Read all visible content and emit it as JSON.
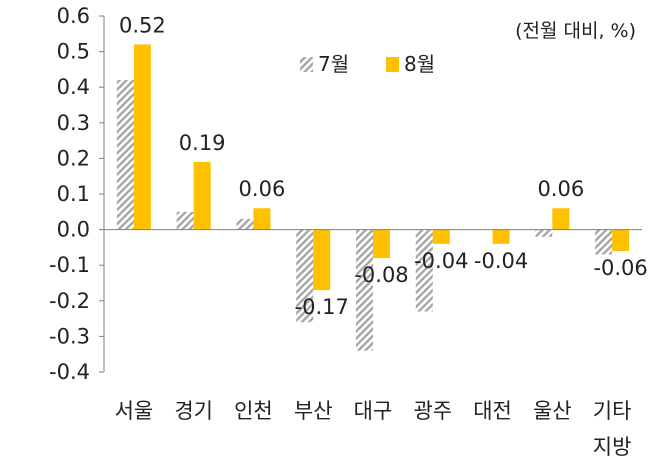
{
  "unit_note": "(전월 대비, %)",
  "colors": {
    "aug": "#FFC000",
    "jul_stripe": "#A6A6A6",
    "axis": "#808080"
  },
  "chart_data": {
    "type": "bar",
    "categories": [
      "서울",
      "경기",
      "인천",
      "부산",
      "대구",
      "광주",
      "대전",
      "울산",
      "기타"
    ],
    "category_extra": {
      "8": "지방"
    },
    "series": [
      {
        "name": "7월",
        "pattern": "diagonal-hatch",
        "values": [
          0.42,
          0.05,
          0.03,
          -0.26,
          -0.34,
          -0.23,
          0.0,
          -0.02,
          -0.07
        ]
      },
      {
        "name": "8월",
        "values": [
          0.52,
          0.19,
          0.06,
          -0.17,
          -0.08,
          -0.04,
          -0.04,
          0.06,
          -0.06
        ]
      }
    ],
    "data_labels": [
      "0.52",
      "0.19",
      "0.06",
      "-0.17",
      "-0.08",
      "-0.04",
      "-0.04",
      "0.06",
      "-0.06"
    ],
    "yticks": [
      "0.6",
      "0.5",
      "0.4",
      "0.3",
      "0.2",
      "0.1",
      "0.0",
      "-0.1",
      "-0.2",
      "-0.3",
      "-0.4"
    ],
    "ylim": [
      -0.4,
      0.6
    ],
    "legend_position": "top-right",
    "grid": false
  }
}
